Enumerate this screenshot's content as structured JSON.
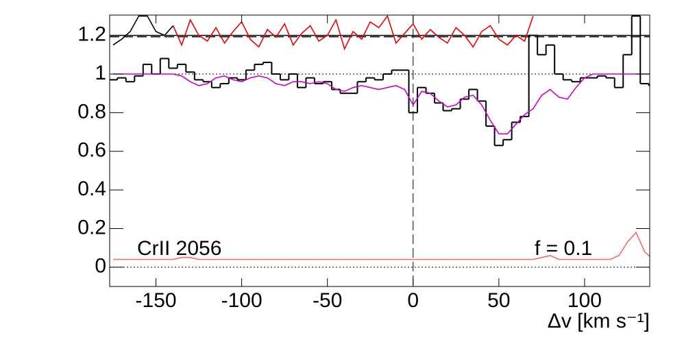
{
  "chart_data": {
    "type": "spectrum",
    "x_label": "Δv [km s⁻¹]",
    "annotations": [
      "CrII 2056",
      "f = 0.1"
    ],
    "xlim": [
      -177,
      138
    ],
    "ylim": [
      -0.1,
      1.305
    ],
    "xticks": [
      -150,
      -100,
      -50,
      0,
      50,
      100
    ],
    "yticks": [
      0,
      0.2,
      0.4,
      0.6,
      0.8,
      1,
      1.2
    ],
    "hlines": [
      {
        "value": 1.2,
        "style": "solid",
        "color": "#000000"
      },
      {
        "value": 1.2,
        "style": "dashed",
        "color": "#000000"
      },
      {
        "value": 1,
        "style": "dotted",
        "color": "#000000"
      },
      {
        "value": 0,
        "style": "dotted",
        "color": "#000000"
      }
    ],
    "vlines": [
      {
        "value": 0,
        "style": "dashed",
        "color": "#000000"
      }
    ],
    "series": [
      {
        "style": "step",
        "color": "#000000",
        "x": [
          -175,
          -170,
          -165,
          -160,
          -155,
          -150,
          -145,
          -140,
          -135,
          -130,
          -125,
          -120,
          -115,
          -110,
          -105,
          -100,
          -95,
          -90,
          -85,
          -80,
          -75,
          -70,
          -65,
          -60,
          -55,
          -50,
          -45,
          -40,
          -35,
          -30,
          -25,
          -20,
          -15,
          -10,
          -5,
          0,
          5,
          10,
          15,
          20,
          25,
          30,
          35,
          40,
          45,
          50,
          55,
          60,
          65,
          70,
          75,
          80,
          85,
          90,
          95,
          100,
          105,
          110,
          115,
          120,
          125,
          130,
          135,
          140
        ],
        "values": [
          0.97,
          0.98,
          0.96,
          0.99,
          1.05,
          1.0,
          1.08,
          1.03,
          1.05,
          1.01,
          0.97,
          0.96,
          0.93,
          0.95,
          0.98,
          0.97,
          1.02,
          1.05,
          1.06,
          1.0,
          0.97,
          1.0,
          0.93,
          0.98,
          0.95,
          0.96,
          0.92,
          0.9,
          0.9,
          0.96,
          0.98,
          0.97,
          1.0,
          1.02,
          1.02,
          0.8,
          0.93,
          0.9,
          0.85,
          0.81,
          0.82,
          0.87,
          0.92,
          0.86,
          0.73,
          0.63,
          0.66,
          0.75,
          0.78,
          1.2,
          1.1,
          1.15,
          1.0,
          0.97,
          0.96,
          0.98,
          0.98,
          0.99,
          0.98,
          0.93,
          1.1,
          1.3,
          0.95,
          0.94
        ]
      },
      {
        "style": "line",
        "color": "#cc00cc",
        "x": [
          -175,
          -170,
          -165,
          -160,
          -155,
          -150,
          -145,
          -140,
          -135,
          -130,
          -125,
          -120,
          -115,
          -110,
          -105,
          -100,
          -95,
          -90,
          -85,
          -80,
          -75,
          -70,
          -65,
          -60,
          -55,
          -50,
          -45,
          -40,
          -35,
          -30,
          -25,
          -20,
          -15,
          -10,
          -5,
          0,
          5,
          10,
          15,
          20,
          25,
          30,
          35,
          40,
          45,
          50,
          55,
          60,
          65,
          70,
          75,
          80,
          85,
          90,
          95,
          100,
          105,
          110,
          115,
          120,
          125,
          130,
          135,
          140
        ],
        "values": [
          1.0,
          1.0,
          1.0,
          1.0,
          1.0,
          1.0,
          1.0,
          1.0,
          0.99,
          0.96,
          0.94,
          0.95,
          0.98,
          0.99,
          0.97,
          0.96,
          0.98,
          0.99,
          0.98,
          0.95,
          0.94,
          0.96,
          0.96,
          0.95,
          0.96,
          0.95,
          0.92,
          0.91,
          0.93,
          0.94,
          0.93,
          0.92,
          0.93,
          0.94,
          0.92,
          0.84,
          0.91,
          0.9,
          0.86,
          0.83,
          0.84,
          0.88,
          0.89,
          0.84,
          0.76,
          0.69,
          0.69,
          0.74,
          0.79,
          0.82,
          0.89,
          0.92,
          0.88,
          0.87,
          0.93,
          0.98,
          1.0,
          1.0,
          1.0,
          1.0,
          1.0,
          1.0,
          1.0,
          1.0
        ]
      },
      {
        "style": "line",
        "color": "#ee0000",
        "x": [
          -140,
          -135,
          -130,
          -125,
          -120,
          -115,
          -110,
          -105,
          -100,
          -95,
          -90,
          -85,
          -80,
          -75,
          -70,
          -65,
          -60,
          -55,
          -50,
          -45,
          -40,
          -35,
          -30,
          -25,
          -20,
          -15,
          -10,
          -5,
          0,
          5,
          10,
          15,
          20,
          25,
          30,
          35,
          40,
          45,
          50,
          55,
          60,
          65,
          70
        ],
        "values": [
          1.25,
          1.15,
          1.28,
          1.2,
          1.17,
          1.24,
          1.16,
          1.22,
          1.27,
          1.18,
          1.14,
          1.23,
          1.19,
          1.26,
          1.15,
          1.21,
          1.25,
          1.17,
          1.2,
          1.28,
          1.13,
          1.22,
          1.18,
          1.27,
          1.24,
          1.3,
          1.16,
          1.21,
          1.26,
          1.18,
          1.23,
          1.19,
          1.16,
          1.24,
          1.2,
          1.14,
          1.22,
          1.25,
          1.18,
          1.15,
          1.2,
          1.17,
          1.3
        ]
      },
      {
        "style": "line",
        "color": "#000000",
        "x": [
          -175,
          -170,
          -165,
          -160,
          -155,
          -150,
          -145,
          -140
        ],
        "values": [
          1.15,
          1.18,
          1.22,
          1.3,
          1.3,
          1.22,
          1.2,
          1.25
        ]
      },
      {
        "style": "line",
        "color": "#ff6666",
        "x": [
          -175,
          -170,
          -165,
          -160,
          -155,
          -150,
          -145,
          -140,
          -135,
          -130,
          -125,
          -120,
          -115,
          -110,
          -105,
          -100,
          -95,
          -90,
          -85,
          -80,
          -75,
          -70,
          -65,
          -60,
          -55,
          -50,
          -45,
          -40,
          -35,
          -30,
          -25,
          -20,
          -15,
          -10,
          -5,
          0,
          5,
          10,
          15,
          20,
          25,
          30,
          35,
          40,
          45,
          50,
          55,
          60,
          65,
          70,
          75,
          80,
          85,
          90,
          95,
          100,
          105,
          110,
          115,
          120,
          125,
          130,
          135,
          140
        ],
        "values": [
          0.04,
          0.04,
          0.04,
          0.04,
          0.04,
          0.04,
          0.04,
          0.04,
          0.05,
          0.05,
          0.04,
          0.04,
          0.04,
          0.04,
          0.04,
          0.04,
          0.04,
          0.04,
          0.04,
          0.04,
          0.04,
          0.04,
          0.04,
          0.04,
          0.04,
          0.04,
          0.04,
          0.04,
          0.04,
          0.04,
          0.04,
          0.04,
          0.04,
          0.04,
          0.04,
          0.04,
          0.04,
          0.04,
          0.04,
          0.04,
          0.04,
          0.04,
          0.04,
          0.04,
          0.04,
          0.04,
          0.04,
          0.04,
          0.04,
          0.04,
          0.05,
          0.06,
          0.04,
          0.04,
          0.04,
          0.04,
          0.04,
          0.04,
          0.04,
          0.06,
          0.13,
          0.18,
          0.08,
          0.04
        ]
      }
    ]
  }
}
